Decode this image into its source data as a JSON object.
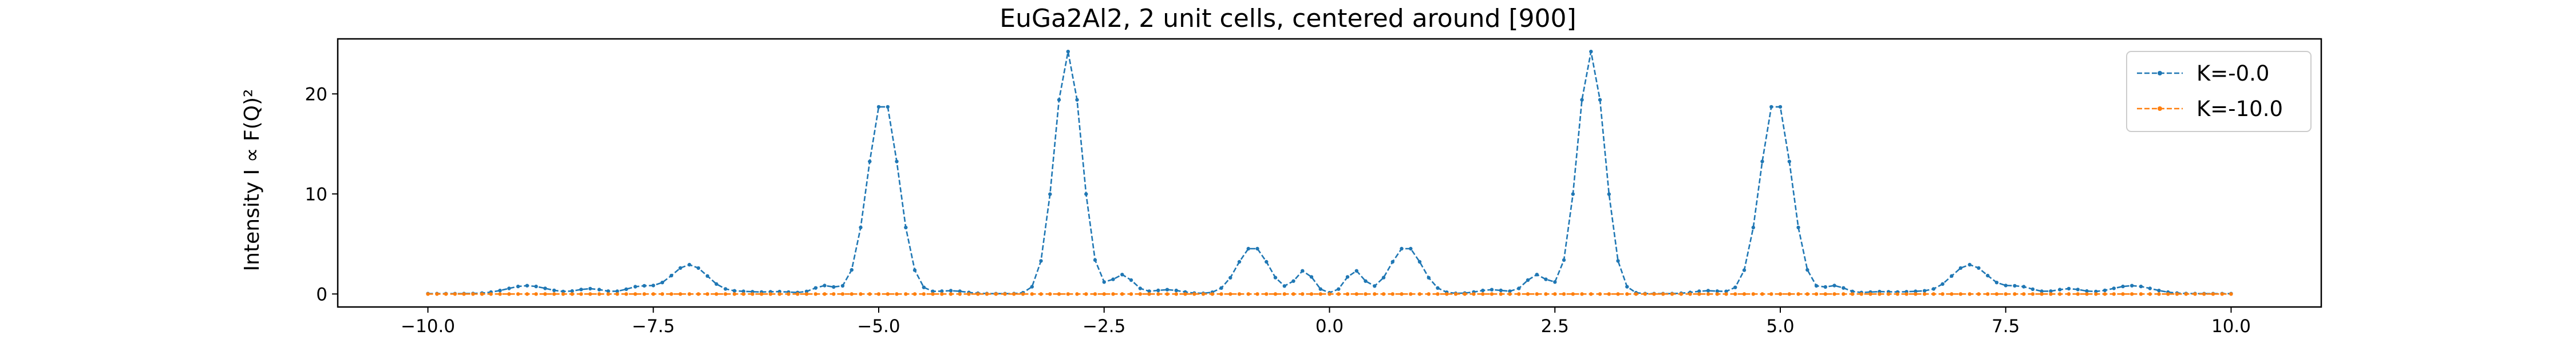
{
  "chart_data": {
    "type": "line",
    "title": "EuGa2Al2, 2 unit cells, centered around [900]",
    "xlabel": "",
    "ylabel": "Intensity I ∝ F(Q)²",
    "xlim": [
      -11.0,
      11.0
    ],
    "ylim": [
      -1.3,
      25.5
    ],
    "x_ticks": [
      -10.0,
      -7.5,
      -5.0,
      -2.5,
      0.0,
      2.5,
      5.0,
      7.5,
      10.0
    ],
    "x_tick_labels": [
      "−10.0",
      "−7.5",
      "−5.0",
      "−2.5",
      "0.0",
      "2.5",
      "5.0",
      "7.5",
      "10.0"
    ],
    "y_ticks": [
      0,
      10,
      20
    ],
    "y_tick_labels": [
      "0",
      "10",
      "20"
    ],
    "grid": false,
    "legend_position": "top-right",
    "x_sampling": {
      "start": -10.0,
      "stop": 10.0,
      "step": 0.1
    },
    "series": [
      {
        "name": "K=-0.0",
        "color": "#1f77b4",
        "peaks": [
          {
            "center": -8.9,
            "height": 0.8,
            "width": 0.22
          },
          {
            "center": -8.2,
            "height": 0.5,
            "width": 0.15
          },
          {
            "center": -7.65,
            "height": 0.7,
            "width": 0.15
          },
          {
            "center": -7.1,
            "height": 2.9,
            "width": 0.2
          },
          {
            "center": -6.5,
            "height": 0.2,
            "width": 0.15
          },
          {
            "center": -6.1,
            "height": 0.2,
            "width": 0.15
          },
          {
            "center": -5.6,
            "height": 0.8,
            "width": 0.12
          },
          {
            "center": -4.95,
            "height": 19.5,
            "width": 0.17
          },
          {
            "center": -4.2,
            "height": 0.3,
            "width": 0.15
          },
          {
            "center": -2.9,
            "height": 24.2,
            "width": 0.15
          },
          {
            "center": -2.3,
            "height": 1.9,
            "width": 0.12
          },
          {
            "center": -1.8,
            "height": 0.4,
            "width": 0.15
          },
          {
            "center": -0.85,
            "height": 4.7,
            "width": 0.17
          },
          {
            "center": -0.28,
            "height": 2.3,
            "width": 0.1
          },
          {
            "center": 0.28,
            "height": 2.3,
            "width": 0.1
          },
          {
            "center": 0.85,
            "height": 4.7,
            "width": 0.17
          },
          {
            "center": 1.8,
            "height": 0.4,
            "width": 0.15
          },
          {
            "center": 2.3,
            "height": 1.9,
            "width": 0.12
          },
          {
            "center": 2.9,
            "height": 24.2,
            "width": 0.15
          },
          {
            "center": 4.2,
            "height": 0.3,
            "width": 0.15
          },
          {
            "center": 4.95,
            "height": 19.5,
            "width": 0.17
          },
          {
            "center": 5.6,
            "height": 0.8,
            "width": 0.12
          },
          {
            "center": 6.1,
            "height": 0.2,
            "width": 0.15
          },
          {
            "center": 6.5,
            "height": 0.2,
            "width": 0.15
          },
          {
            "center": 7.1,
            "height": 2.9,
            "width": 0.2
          },
          {
            "center": 7.65,
            "height": 0.7,
            "width": 0.15
          },
          {
            "center": 8.2,
            "height": 0.5,
            "width": 0.15
          },
          {
            "center": 8.9,
            "height": 0.8,
            "width": 0.22
          }
        ]
      },
      {
        "name": "K=-10.0",
        "color": "#ff7f0e",
        "constant_value": 0.0
      }
    ]
  }
}
